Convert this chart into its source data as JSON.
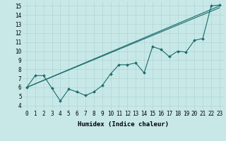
{
  "xlabel": "Humidex (Indice chaleur)",
  "bg_color": "#c8e8e8",
  "grid_color": "#aed4d4",
  "line_color": "#1a6b6b",
  "xlim": [
    -0.5,
    23.5
  ],
  "ylim": [
    3.5,
    15.5
  ],
  "xticks": [
    0,
    1,
    2,
    3,
    4,
    5,
    6,
    7,
    8,
    9,
    10,
    11,
    12,
    13,
    14,
    15,
    16,
    17,
    18,
    19,
    20,
    21,
    22,
    23
  ],
  "yticks": [
    4,
    5,
    6,
    7,
    8,
    9,
    10,
    11,
    12,
    13,
    14,
    15
  ],
  "line1_x": [
    0,
    1,
    2,
    3,
    4,
    5,
    6,
    7,
    8,
    9,
    10,
    11,
    12,
    13,
    14,
    15,
    16,
    17,
    18,
    19,
    20,
    21,
    22,
    23
  ],
  "line1_y": [
    6.0,
    7.3,
    7.3,
    5.9,
    4.5,
    5.8,
    5.5,
    5.1,
    5.5,
    6.2,
    7.5,
    8.5,
    8.5,
    8.7,
    7.6,
    10.5,
    10.2,
    9.4,
    10.0,
    9.9,
    11.2,
    11.4,
    15.0,
    15.1
  ],
  "line2_x": [
    0,
    23
  ],
  "line2_y": [
    6.0,
    15.0
  ],
  "line3_x": [
    0,
    23
  ],
  "line3_y": [
    6.0,
    14.8
  ],
  "xlabel_fontsize": 6.5,
  "tick_fontsize": 5.5
}
